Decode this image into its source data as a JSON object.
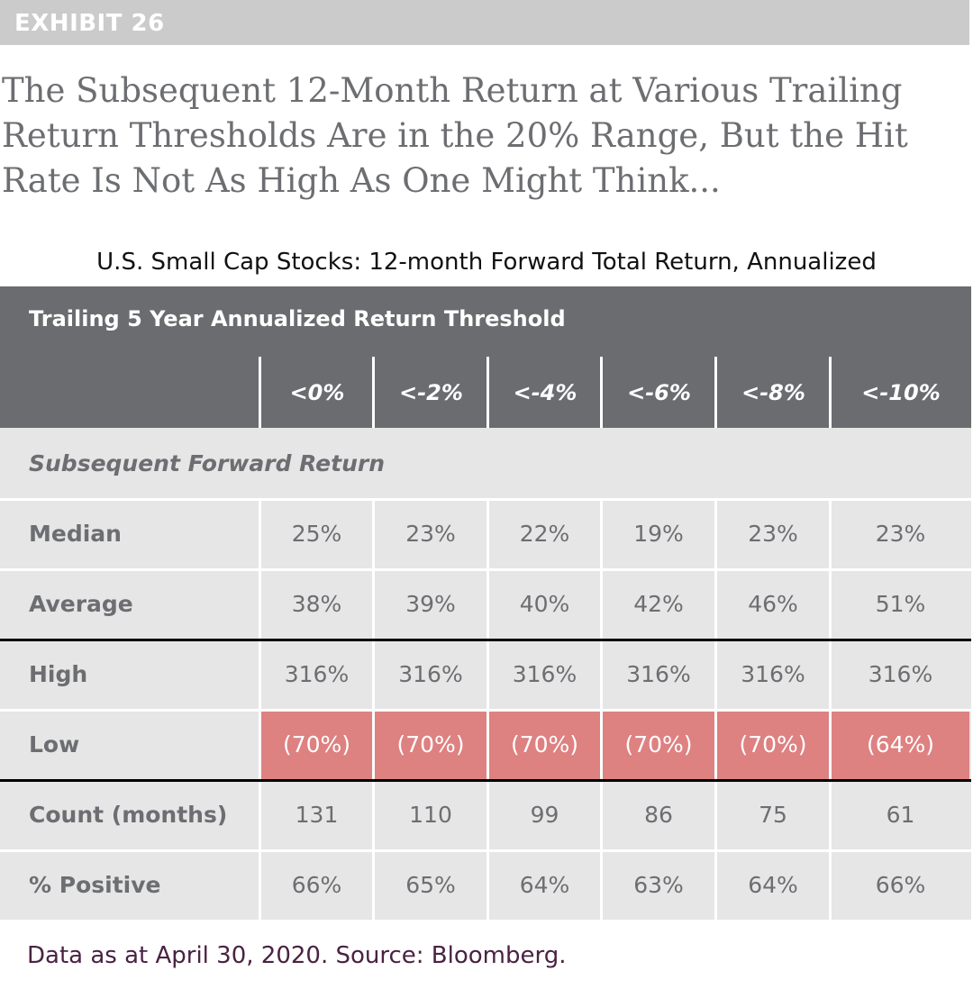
{
  "exhibit": "EXHIBIT 26",
  "title": "The Subsequent 12-Month Return at Various Trailing Return Thresholds Are in the 20% Range, But the Hit Rate Is Not As High As One Might Think...",
  "subtitle": "U.S. Small Cap Stocks: 12-month Forward Total Return, Annualized",
  "source": "Data as at April 30, 2020. Source: Bloomberg.",
  "colors": {
    "header": "#6b6c70",
    "row_bg": "#e6e6e6",
    "highlight": "#de8181",
    "text": "#6d6e72",
    "source": "#4a2242"
  },
  "chart_data": {
    "type": "table",
    "header_title": "Trailing 5 Year Annualized Return Threshold",
    "columns": [
      "<0%",
      "<-2%",
      "<-4%",
      "<-6%",
      "<-8%",
      "<-10%"
    ],
    "section_label": "Subsequent Forward Return",
    "rows": [
      {
        "label": "Median",
        "values": [
          "25%",
          "23%",
          "22%",
          "19%",
          "23%",
          "23%"
        ]
      },
      {
        "label": "Average",
        "values": [
          "38%",
          "39%",
          "40%",
          "42%",
          "46%",
          "51%"
        ]
      },
      {
        "label": "High",
        "values": [
          "316%",
          "316%",
          "316%",
          "316%",
          "316%",
          "316%"
        ]
      },
      {
        "label": "Low",
        "values": [
          "(70%)",
          "(70%)",
          "(70%)",
          "(70%)",
          "(70%)",
          "(64%)"
        ],
        "highlight": true
      },
      {
        "label": "Count (months)",
        "values": [
          "131",
          "110",
          "99",
          "86",
          "75",
          "61"
        ]
      },
      {
        "label": "% Positive",
        "values": [
          "66%",
          "65%",
          "64%",
          "63%",
          "64%",
          "66%"
        ]
      }
    ]
  }
}
